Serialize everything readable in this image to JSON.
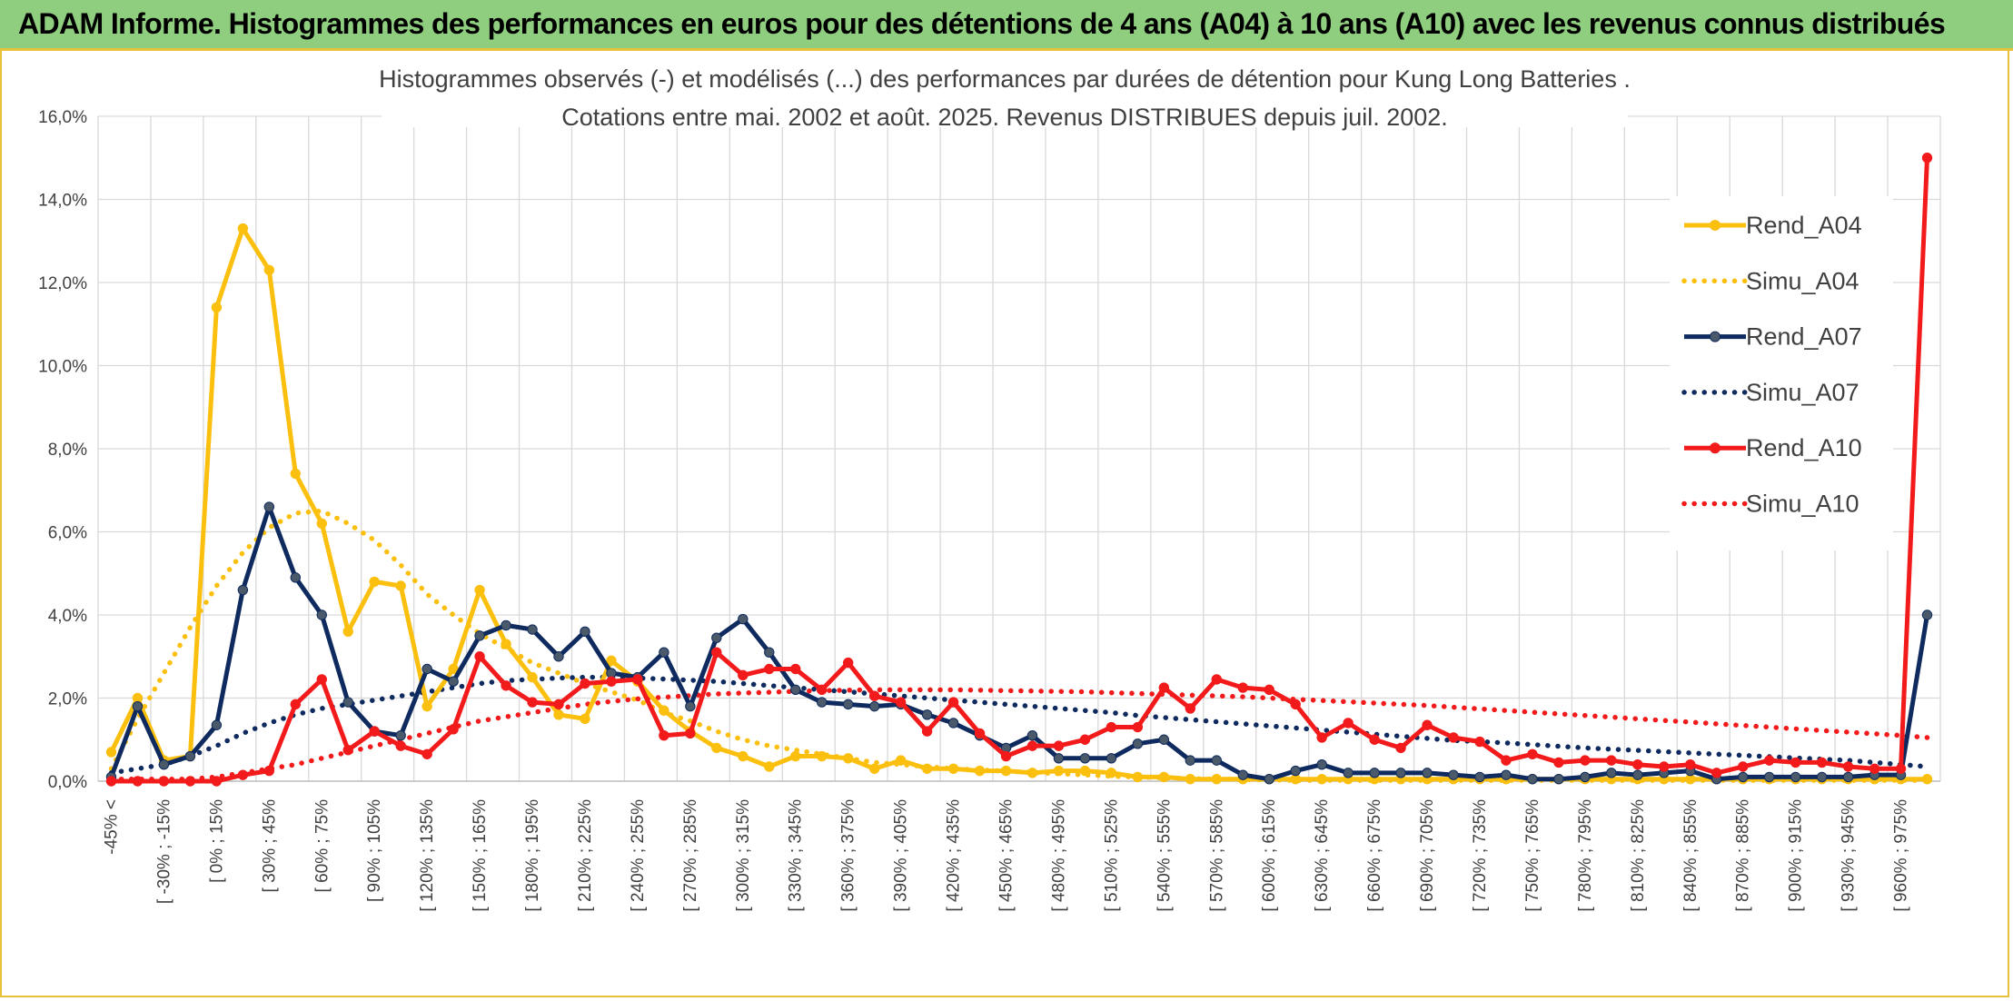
{
  "header": {
    "title": "ADAM Informe. Histogrammes des performances en euros pour des détentions de 4 ans (A04) à 10 ans (A10) avec les revenus connus distribués"
  },
  "colors": {
    "header_bg": "#8fce7e",
    "frame": "#e8c23a",
    "A04": "#fbbf0e",
    "A07": "#0e2a5e",
    "A07_marker": "#4a5a6a",
    "A10": "#f21a1a",
    "grid": "#d9d9d9",
    "text": "#404040"
  },
  "chart_data": {
    "type": "line",
    "title": "Histogrammes observés (-) et modélisés (...) des performances par durées de détention pour Kung Long Batteries .",
    "subtitle": "Cotations entre mai. 2002 et août. 2025. Revenus DISTRIBUES depuis juil. 2002.",
    "xlabel": "",
    "ylabel": "",
    "ylim": [
      0,
      16
    ],
    "yticks": [
      "0,0%",
      "2,0%",
      "4,0%",
      "6,0%",
      "8,0%",
      "10,0%",
      "12,0%",
      "14,0%",
      "16,0%"
    ],
    "grid": true,
    "legend_position": "right",
    "x_tick_labels": [
      "-45% <",
      "[ -30% ; -15%",
      "[ 0% ; 15%",
      "[ 30% ; 45%",
      "[ 60% ; 75%",
      "[ 90% ; 105%",
      "[ 120% ; 135%",
      "[ 150% ; 165%",
      "[ 180% ; 195%",
      "[ 210% ; 225%",
      "[ 240% ; 255%",
      "[ 270% ; 285%",
      "[ 300% ; 315%",
      "[ 330% ; 345%",
      "[ 360% ; 375%",
      "[ 390% ; 405%",
      "[ 420% ; 435%",
      "[ 450% ; 465%",
      "[ 480% ; 495%",
      "[ 510% ; 525%",
      "[ 540% ; 555%",
      "[ 570% ; 585%",
      "[ 600% ; 615%",
      "[ 630% ; 645%",
      "[ 660% ; 675%",
      "[ 690% ; 705%",
      "[ 720% ; 735%",
      "[ 750% ; 765%",
      "[ 780% ; 795%",
      "[ 810% ; 825%",
      "[ 840% ; 855%",
      "[ 870% ; 885%",
      "[ 900% ; 915%",
      "[ 930% ; 945%",
      "[ 960% ; 975%"
    ],
    "series": [
      {
        "name": "Rend_A04",
        "style": "solid",
        "values": [
          0.7,
          2.0,
          0.5,
          0.6,
          11.4,
          13.3,
          12.3,
          7.4,
          6.2,
          3.6,
          4.8,
          4.7,
          1.8,
          2.7,
          4.6,
          3.3,
          2.5,
          1.6,
          1.5,
          2.9,
          2.4,
          1.7,
          1.2,
          0.8,
          0.6,
          0.35,
          0.6,
          0.6,
          0.55,
          0.3,
          0.5,
          0.3,
          0.3,
          0.25,
          0.25,
          0.2,
          0.25,
          0.25,
          0.2,
          0.1,
          0.1,
          0.05,
          0.05,
          0.05,
          0.05,
          0.05,
          0.05,
          0.05,
          0.05,
          0.05,
          0.05,
          0.05,
          0.05,
          0.05,
          0.05,
          0.05,
          0.05,
          0.05,
          0.05,
          0.05,
          0.05,
          0.05,
          0.05,
          0.05,
          0.05,
          0.05,
          0.05,
          0.05,
          0.05,
          0.05
        ]
      },
      {
        "name": "Simu_A04",
        "style": "dotted",
        "values": [
          0.3,
          1.5,
          2.6,
          3.7,
          4.7,
          5.5,
          6.1,
          6.45,
          6.5,
          6.2,
          5.8,
          5.2,
          4.5,
          4.0,
          3.55,
          3.2,
          2.85,
          2.6,
          2.35,
          2.15,
          1.95,
          1.65,
          1.45,
          1.2,
          1.0,
          0.85,
          0.75,
          0.65,
          0.55,
          0.45,
          0.4,
          0.35,
          0.3,
          0.27,
          0.24,
          0.21,
          0.18,
          0.15,
          0.12,
          0.1,
          0.08,
          0.06,
          0.05,
          0.04,
          0.03,
          0.02,
          0.02,
          0.02,
          0.02,
          0.02,
          0.02,
          0.02,
          0.02,
          0.02,
          0.02,
          0.02,
          0.02,
          0.02,
          0.02,
          0.02,
          0.02,
          0.02,
          0.02,
          0.02,
          0.02,
          0.02,
          0.02,
          0.02,
          0.02,
          0.02
        ]
      },
      {
        "name": "Rend_A07",
        "style": "solid",
        "values": [
          0.1,
          1.8,
          0.4,
          0.6,
          1.35,
          4.6,
          6.6,
          4.9,
          4.0,
          1.9,
          1.2,
          1.1,
          2.7,
          2.4,
          3.5,
          3.75,
          3.65,
          3.0,
          3.6,
          2.6,
          2.5,
          3.1,
          1.8,
          3.45,
          3.9,
          3.1,
          2.2,
          1.9,
          1.85,
          1.8,
          1.85,
          1.6,
          1.4,
          1.1,
          0.8,
          1.1,
          0.55,
          0.55,
          0.55,
          0.9,
          1.0,
          0.5,
          0.5,
          0.15,
          0.05,
          0.25,
          0.4,
          0.2,
          0.2,
          0.2,
          0.2,
          0.15,
          0.1,
          0.15,
          0.05,
          0.05,
          0.1,
          0.2,
          0.15,
          0.2,
          0.25,
          0.05,
          0.1,
          0.1,
          0.1,
          0.1,
          0.1,
          0.15,
          0.15,
          4.0
        ]
      },
      {
        "name": "Simu_A07",
        "style": "dotted",
        "values": [
          0.2,
          0.3,
          0.4,
          0.6,
          0.85,
          1.15,
          1.4,
          1.6,
          1.75,
          1.85,
          1.95,
          2.05,
          2.15,
          2.25,
          2.35,
          2.42,
          2.45,
          2.48,
          2.5,
          2.5,
          2.48,
          2.46,
          2.43,
          2.4,
          2.35,
          2.3,
          2.25,
          2.2,
          2.15,
          2.1,
          2.05,
          2.0,
          1.95,
          1.9,
          1.85,
          1.8,
          1.75,
          1.7,
          1.65,
          1.58,
          1.53,
          1.48,
          1.43,
          1.38,
          1.33,
          1.28,
          1.23,
          1.18,
          1.13,
          1.08,
          1.03,
          0.98,
          0.95,
          0.92,
          0.88,
          0.84,
          0.8,
          0.77,
          0.74,
          0.71,
          0.68,
          0.65,
          0.62,
          0.59,
          0.56,
          0.53,
          0.5,
          0.45,
          0.4,
          0.35
        ]
      },
      {
        "name": "Rend_A10",
        "style": "solid",
        "values": [
          0.0,
          0.0,
          0.0,
          0.0,
          0.0,
          0.15,
          0.25,
          1.85,
          2.45,
          0.75,
          1.2,
          0.85,
          0.65,
          1.25,
          3.0,
          2.3,
          1.9,
          1.85,
          2.35,
          2.4,
          2.45,
          1.1,
          1.15,
          3.1,
          2.55,
          2.7,
          2.7,
          2.2,
          2.85,
          2.05,
          1.9,
          1.2,
          1.9,
          1.15,
          0.6,
          0.85,
          0.85,
          1.0,
          1.3,
          1.3,
          2.25,
          1.75,
          2.45,
          2.25,
          2.2,
          1.85,
          1.05,
          1.4,
          1.0,
          0.8,
          1.35,
          1.05,
          0.95,
          0.5,
          0.65,
          0.45,
          0.5,
          0.5,
          0.4,
          0.35,
          0.4,
          0.2,
          0.35,
          0.5,
          0.45,
          0.45,
          0.35,
          0.3,
          0.3,
          15.0
        ]
      },
      {
        "name": "Simu_A10",
        "style": "dotted",
        "values": [
          0.05,
          0.05,
          0.05,
          0.05,
          0.1,
          0.2,
          0.3,
          0.4,
          0.55,
          0.7,
          0.85,
          1.0,
          1.15,
          1.3,
          1.45,
          1.55,
          1.65,
          1.75,
          1.85,
          1.92,
          1.98,
          2.02,
          2.06,
          2.1,
          2.12,
          2.14,
          2.16,
          2.18,
          2.19,
          2.2,
          2.2,
          2.2,
          2.2,
          2.19,
          2.18,
          2.17,
          2.16,
          2.15,
          2.13,
          2.11,
          2.09,
          2.07,
          2.05,
          2.03,
          2.0,
          1.97,
          1.94,
          1.91,
          1.88,
          1.85,
          1.82,
          1.78,
          1.74,
          1.7,
          1.66,
          1.62,
          1.58,
          1.54,
          1.5,
          1.46,
          1.42,
          1.38,
          1.34,
          1.3,
          1.26,
          1.22,
          1.18,
          1.14,
          1.1,
          1.05
        ]
      }
    ]
  }
}
